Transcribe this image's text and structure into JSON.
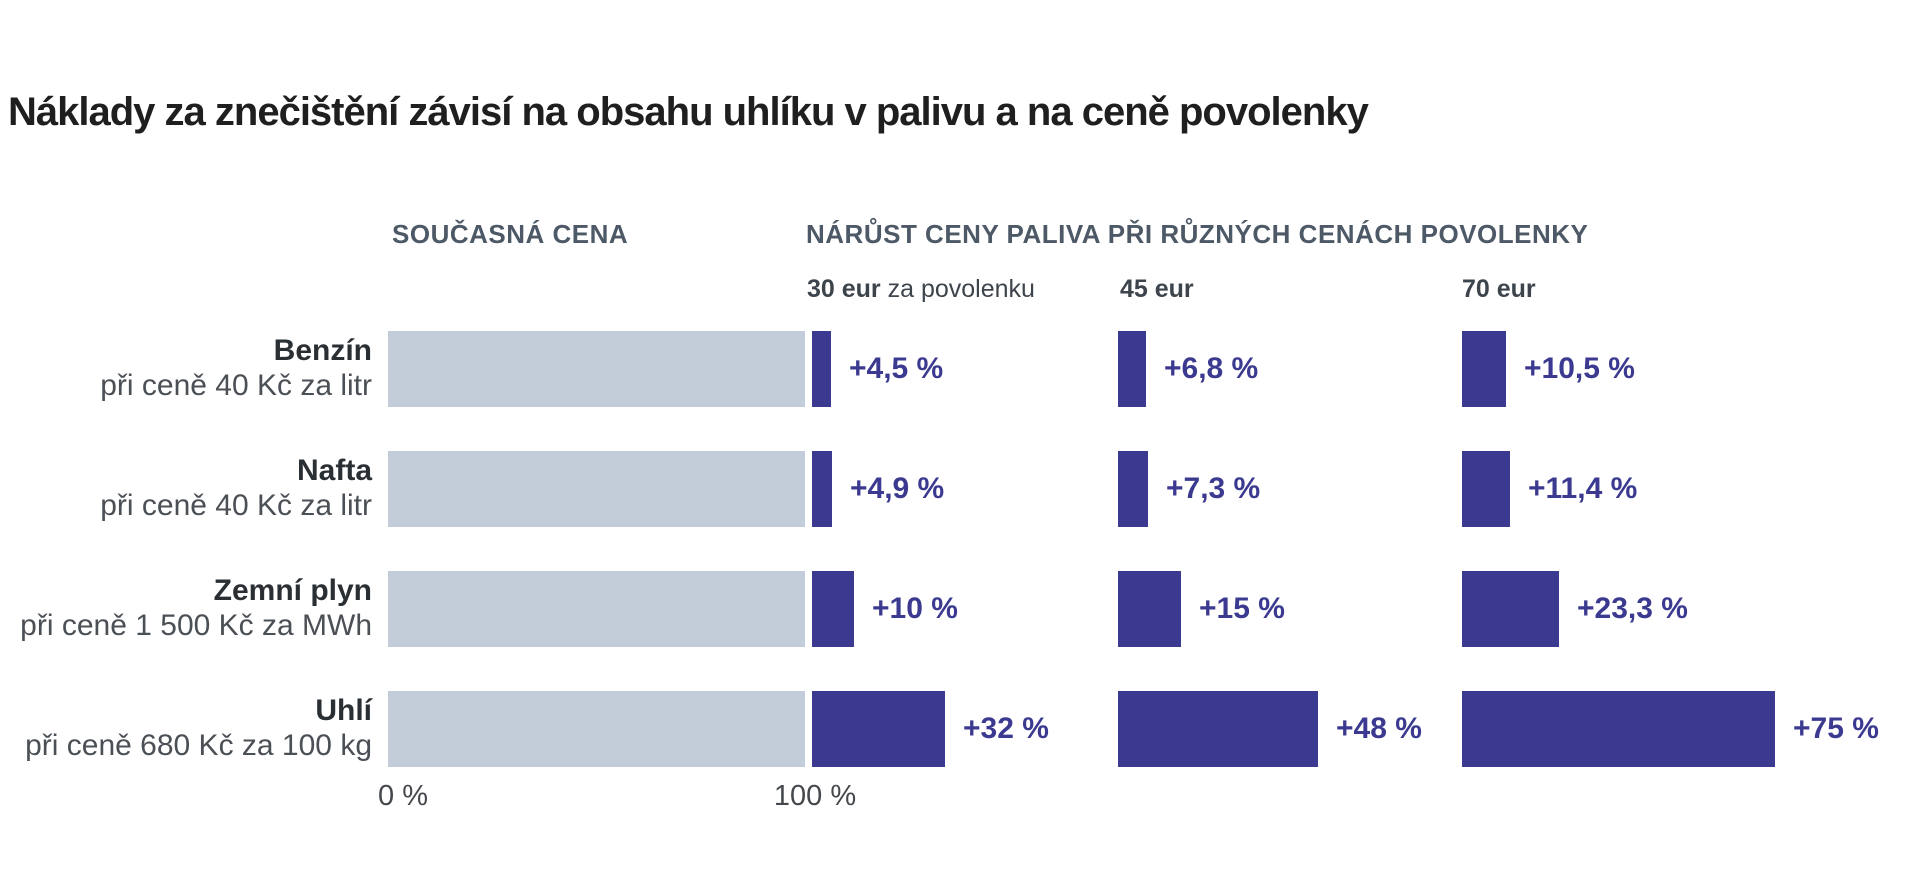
{
  "title": "Náklady za znečištění závisí na obsahu uhlíku v palivu a na ceně povolenky",
  "columns": {
    "current_price_header": "SOUČASNÁ CENA",
    "increase_header": "NÁRŮST CENY PALIVA PŘI RŮZNÝCH CENÁCH POVOLENKY",
    "scenarios": [
      {
        "price": "30 eur",
        "suffix": " za povolenku"
      },
      {
        "price": "45 eur",
        "suffix": ""
      },
      {
        "price": "70 eur",
        "suffix": ""
      }
    ]
  },
  "axis": {
    "start_label": "0 %",
    "end_label": "100 %"
  },
  "colors": {
    "base_bar": "#c3cdd9",
    "increase_bar": "#3b3a90",
    "title_text": "#1f1f1f",
    "column_header_text": "#4d5966"
  },
  "chart_data": {
    "type": "bar",
    "title": "Náklady za znečištění závisí na obsahu uhlíku v palivu a na ceně povolenky",
    "xlabel": "",
    "ylabel": "",
    "x_axis": {
      "start_label": "0 %",
      "end_label": "100 %",
      "range_pct": [
        0,
        100
      ]
    },
    "orientation": "horizontal",
    "categories": [
      "Benzín",
      "Nafta",
      "Zemní plyn",
      "Uhlí"
    ],
    "category_subtitles": [
      "při ceně 40 Kč za litr",
      "při ceně 40 Kč za litr",
      "při ceně 1 500 Kč za MWh",
      "při ceně 680 Kč za 100 kg"
    ],
    "base_series": {
      "name": "SOUČASNÁ CENA",
      "values_pct": [
        100,
        100,
        100,
        100
      ]
    },
    "series": [
      {
        "name": "30 eur za povolenku",
        "values": [
          4.5,
          4.9,
          10,
          32
        ],
        "labels": [
          "+4,5 %",
          "+4,9 %",
          "+10 %",
          "+32 %"
        ]
      },
      {
        "name": "45 eur",
        "values": [
          6.8,
          7.3,
          15,
          48
        ],
        "labels": [
          "+6,8 %",
          "+7,3 %",
          "+15 %",
          "+48 %"
        ]
      },
      {
        "name": "70 eur",
        "values": [
          10.5,
          11.4,
          23.3,
          75
        ],
        "labels": [
          "+10,5 %",
          "+11,4 %",
          "+23,3 %",
          "+75 %"
        ]
      }
    ],
    "legend_position": "top",
    "grid": false
  }
}
